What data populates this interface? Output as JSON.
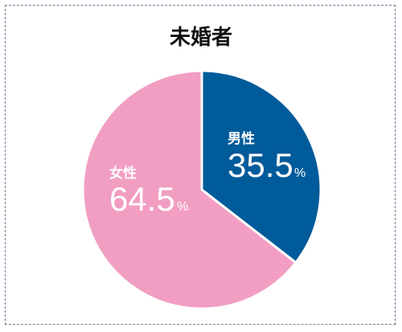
{
  "chart_data": {
    "type": "pie",
    "title": "未婚者",
    "slices": [
      {
        "label": "男性",
        "value": 35.5,
        "display": "35.5",
        "unit": "%",
        "color": "#005b9a"
      },
      {
        "label": "女性",
        "value": 64.5,
        "display": "64.5",
        "unit": "%",
        "color": "#f19ec2"
      }
    ],
    "start_angle": "12 o'clock",
    "direction": "clockwise"
  }
}
